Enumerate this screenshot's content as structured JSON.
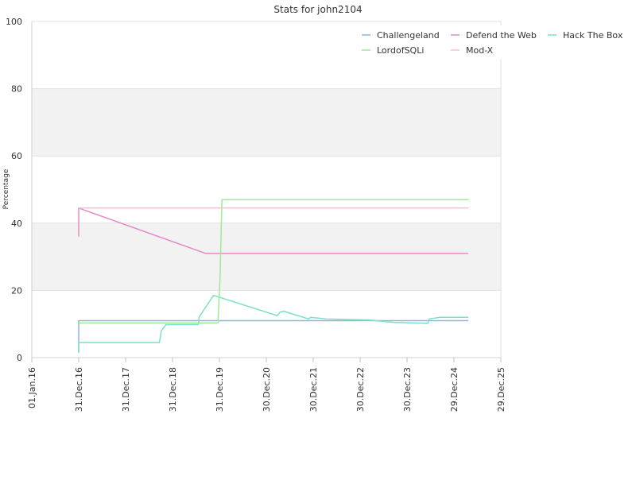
{
  "chart_data": {
    "type": "line",
    "title": "Stats for john2104",
    "xlabel": "",
    "ylabel": "Percentage",
    "ylim": [
      0,
      100
    ],
    "xlim": [
      "2016-01-01",
      "2025-12-29"
    ],
    "y_ticks": [
      0,
      20,
      40,
      60,
      80,
      100
    ],
    "x_ticks": [
      {
        "label": "01.Jan.16",
        "date": "2016-01-01"
      },
      {
        "label": "31.Dec.16",
        "date": "2016-12-31"
      },
      {
        "label": "31.Dec.17",
        "date": "2017-12-31"
      },
      {
        "label": "31.Dec.18",
        "date": "2018-12-31"
      },
      {
        "label": "31.Dec.19",
        "date": "2019-12-31"
      },
      {
        "label": "30.Dec.20",
        "date": "2020-12-30"
      },
      {
        "label": "30.Dec.21",
        "date": "2021-12-30"
      },
      {
        "label": "30.Dec.22",
        "date": "2022-12-30"
      },
      {
        "label": "30.Dec.23",
        "date": "2023-12-30"
      },
      {
        "label": "29.Dec.24",
        "date": "2024-12-29"
      },
      {
        "label": "29.Dec.25",
        "date": "2025-12-29"
      }
    ],
    "grid": true,
    "alternating_bands": true,
    "legend_position": "top-right",
    "series": [
      {
        "name": "Challengeland",
        "color": "#8fb4e0",
        "points": [
          [
            "2016-12-31",
            1.5
          ],
          [
            "2016-12-31",
            11
          ],
          [
            "2025-04-20",
            11
          ]
        ]
      },
      {
        "name": "Defend the Web",
        "color": "#e68ac4",
        "points": [
          [
            "2016-12-31",
            36
          ],
          [
            "2016-12-31",
            44.5
          ],
          [
            "2019-09-15",
            31
          ],
          [
            "2025-04-20",
            31
          ]
        ]
      },
      {
        "name": "Hack The Box",
        "color": "#7ee0c4",
        "points": [
          [
            "2016-12-31",
            1.5
          ],
          [
            "2016-12-31",
            4.5
          ],
          [
            "2018-09-20",
            4.5
          ],
          [
            "2018-10-05",
            8
          ],
          [
            "2018-11-10",
            9.8
          ],
          [
            "2019-07-20",
            9.8
          ],
          [
            "2019-07-25",
            12
          ],
          [
            "2019-11-15",
            18.5
          ],
          [
            "2021-03-25",
            12.5
          ],
          [
            "2021-04-15",
            13.5
          ],
          [
            "2021-05-15",
            13.8
          ],
          [
            "2021-11-25",
            11.5
          ],
          [
            "2021-12-10",
            12
          ],
          [
            "2022-04-10",
            11.5
          ],
          [
            "2023-03-10",
            11.2
          ],
          [
            "2023-09-10",
            10.5
          ],
          [
            "2024-06-10",
            10.2
          ],
          [
            "2024-06-20",
            11.5
          ],
          [
            "2024-09-10",
            12
          ],
          [
            "2025-04-20",
            12
          ]
        ]
      },
      {
        "name": "LordofSQLi",
        "color": "#9ee89a",
        "points": [
          [
            "2016-12-31",
            10.3
          ],
          [
            "2019-12-20",
            10.3
          ],
          [
            "2020-01-05",
            24
          ],
          [
            "2020-01-20",
            47
          ],
          [
            "2025-04-20",
            47
          ]
        ]
      },
      {
        "name": "Mod-X",
        "color": "#f0c4cc",
        "points": [
          [
            "2016-12-31",
            44.5
          ],
          [
            "2025-04-20",
            44.5
          ]
        ]
      }
    ]
  }
}
